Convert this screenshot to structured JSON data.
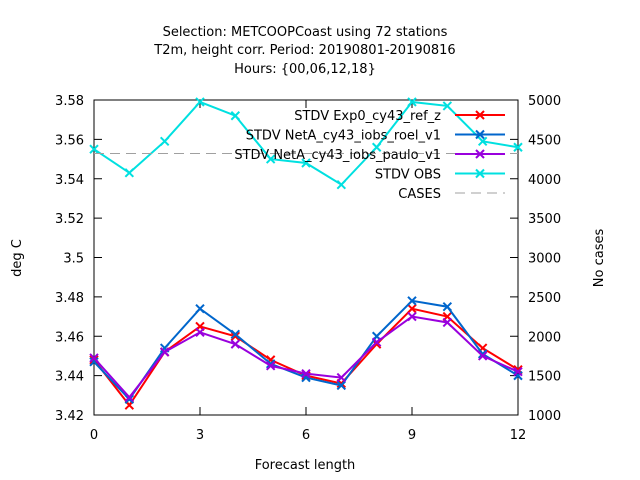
{
  "chart_data": {
    "type": "line",
    "title_lines": [
      "Selection: METCOOPCoast using    72 stations",
      "T2m, height corr.   Period: 20190801-20190816",
      "Hours: {00,06,12,18}"
    ],
    "xlabel": "Forecast length",
    "ylabel": "deg C",
    "y2label": "No cases",
    "x": [
      0,
      1,
      2,
      3,
      4,
      5,
      6,
      7,
      8,
      9,
      10,
      11,
      12
    ],
    "xlim": [
      0,
      12
    ],
    "ylim": [
      3.42,
      3.58
    ],
    "y2lim": [
      1000,
      5000
    ],
    "xticks": [
      "0",
      "3",
      "6",
      "9",
      "12"
    ],
    "yticks": [
      "3.42",
      "3.44",
      "3.46",
      "3.48",
      "3.5",
      "3.52",
      "3.54",
      "3.56",
      "3.58"
    ],
    "y2ticks": [
      "1000",
      "1500",
      "2000",
      "2500",
      "3000",
      "3500",
      "4000",
      "4500",
      "5000"
    ],
    "legend_position": "top-right",
    "grid": false,
    "series": [
      {
        "name": "STDV Exp0_cy43_ref_z",
        "axis": "y",
        "color": "#ff0000",
        "values": [
          3.448,
          3.425,
          3.452,
          3.465,
          3.46,
          3.448,
          3.44,
          3.436,
          3.456,
          3.474,
          3.47,
          3.454,
          3.443
        ]
      },
      {
        "name": "STDV NetA_cy43_iobs_roel_v1",
        "axis": "y",
        "color": "#0066cc",
        "values": [
          3.447,
          3.428,
          3.454,
          3.474,
          3.461,
          3.446,
          3.439,
          3.435,
          3.46,
          3.478,
          3.475,
          3.451,
          3.44
        ]
      },
      {
        "name": "STDV NetA_cy43_iobs_paulo_v1",
        "axis": "y",
        "color": "#9900dd",
        "values": [
          3.449,
          3.429,
          3.452,
          3.462,
          3.456,
          3.445,
          3.441,
          3.439,
          3.457,
          3.47,
          3.467,
          3.45,
          3.442
        ]
      },
      {
        "name": "STDV OBS",
        "axis": "y",
        "color": "#00e0e0",
        "values": [
          3.555,
          3.543,
          3.559,
          3.579,
          3.572,
          3.55,
          3.548,
          3.537,
          3.556,
          3.579,
          3.577,
          3.559,
          3.556
        ]
      },
      {
        "name": "CASES",
        "axis": "y2",
        "color": "#a0a0a0",
        "values": [
          4320,
          4320,
          4320,
          4320,
          4320,
          4320,
          4320,
          4320,
          4320,
          4320,
          4320,
          4320,
          4320
        ]
      }
    ]
  }
}
